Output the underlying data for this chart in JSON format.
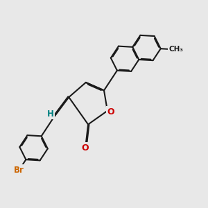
{
  "bg_color": "#e8e8e8",
  "bond_color": "#1a1a1a",
  "bond_width": 1.5,
  "dbo": 0.045,
  "br_color": "#cc6600",
  "o_color": "#cc0000",
  "h_color": "#008080",
  "fig_width": 3.0,
  "fig_height": 3.0,
  "dpi": 100,
  "xlim": [
    -3.8,
    5.2
  ],
  "ylim": [
    -3.5,
    3.5
  ]
}
